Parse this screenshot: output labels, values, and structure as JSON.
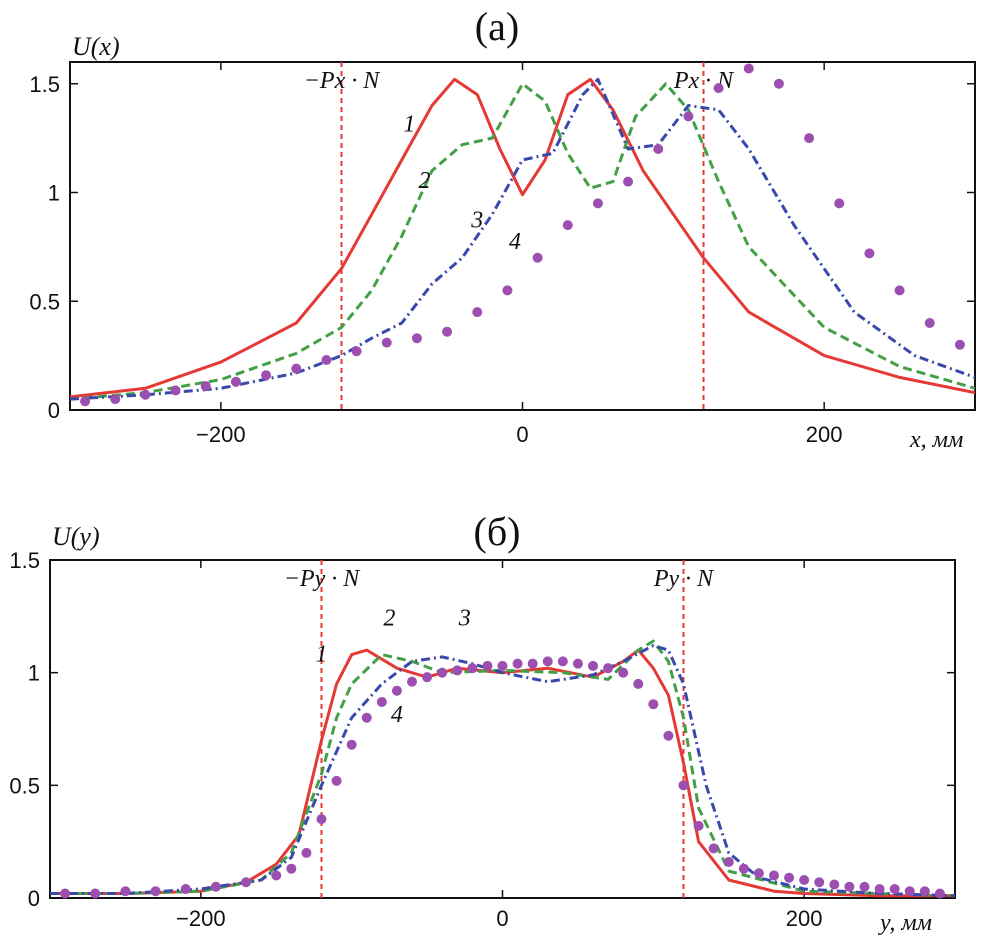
{
  "chart_data": [
    {
      "id": "a",
      "type": "line",
      "title": "(а)",
      "ylabel": "U(x)",
      "xlabel": "x, мм",
      "xlim": [
        -300,
        300
      ],
      "ylim": [
        0,
        1.6
      ],
      "xticks": [
        -200,
        0,
        200
      ],
      "xtick_labels": [
        "−200",
        "0",
        "200"
      ],
      "yticks": [
        0,
        0.5,
        1,
        1.5
      ],
      "ytick_labels": [
        "0",
        "0.5",
        "1",
        "1.5"
      ],
      "markers": [
        {
          "x": -120,
          "label": "−Px · N"
        },
        {
          "x": 120,
          "label": "Px · N"
        }
      ],
      "series": [
        {
          "name": "1",
          "style": "solid",
          "color": "#e53935",
          "x": [
            -300,
            -250,
            -200,
            -150,
            -120,
            -100,
            -80,
            -60,
            -45,
            -30,
            -15,
            0,
            15,
            30,
            45,
            60,
            80,
            100,
            120,
            150,
            200,
            250,
            300
          ],
          "y": [
            0.06,
            0.1,
            0.22,
            0.4,
            0.65,
            0.9,
            1.15,
            1.4,
            1.52,
            1.45,
            1.2,
            0.99,
            1.15,
            1.45,
            1.52,
            1.38,
            1.1,
            0.9,
            0.7,
            0.45,
            0.25,
            0.15,
            0.08
          ]
        },
        {
          "name": "2",
          "style": "dashed",
          "color": "#43a047",
          "x": [
            -300,
            -250,
            -200,
            -150,
            -120,
            -100,
            -80,
            -60,
            -40,
            -20,
            0,
            15,
            30,
            45,
            60,
            75,
            95,
            110,
            130,
            150,
            200,
            250,
            300
          ],
          "y": [
            0.05,
            0.08,
            0.14,
            0.26,
            0.38,
            0.55,
            0.8,
            1.1,
            1.22,
            1.25,
            1.5,
            1.42,
            1.18,
            1.02,
            1.05,
            1.35,
            1.5,
            1.38,
            1.05,
            0.75,
            0.38,
            0.2,
            0.1
          ]
        },
        {
          "name": "3",
          "style": "dashdot",
          "color": "#3949ab",
          "x": [
            -300,
            -250,
            -200,
            -150,
            -120,
            -100,
            -80,
            -60,
            -40,
            -20,
            0,
            20,
            40,
            50,
            70,
            90,
            110,
            130,
            150,
            180,
            220,
            260,
            300
          ],
          "y": [
            0.05,
            0.07,
            0.1,
            0.17,
            0.25,
            0.33,
            0.4,
            0.58,
            0.7,
            0.9,
            1.15,
            1.18,
            1.45,
            1.52,
            1.2,
            1.22,
            1.4,
            1.38,
            1.2,
            0.85,
            0.45,
            0.25,
            0.15
          ]
        },
        {
          "name": "4",
          "style": "dotted",
          "color": "#9c4fb0",
          "x": [
            -290,
            -270,
            -250,
            -230,
            -210,
            -190,
            -170,
            -150,
            -130,
            -110,
            -90,
            -70,
            -50,
            -30,
            -10,
            10,
            30,
            50,
            70,
            90,
            110,
            130,
            150,
            170,
            190,
            210,
            230,
            250,
            270,
            290
          ],
          "y": [
            0.04,
            0.05,
            0.07,
            0.09,
            0.11,
            0.13,
            0.16,
            0.19,
            0.23,
            0.27,
            0.31,
            0.33,
            0.36,
            0.45,
            0.55,
            0.7,
            0.85,
            0.95,
            1.05,
            1.2,
            1.35,
            1.48,
            1.57,
            1.5,
            1.25,
            0.95,
            0.72,
            0.55,
            0.4,
            0.3
          ]
        }
      ],
      "curve_labels": [
        {
          "text": "1",
          "x": -75,
          "y": 1.28
        },
        {
          "text": "2",
          "x": -65,
          "y": 1.02
        },
        {
          "text": "3",
          "x": -30,
          "y": 0.84
        },
        {
          "text": "4",
          "x": -5,
          "y": 0.74
        }
      ]
    },
    {
      "id": "b",
      "type": "line",
      "title": "(б)",
      "ylabel": "U(y)",
      "xlabel": "y, мм",
      "xlim": [
        -300,
        300
      ],
      "ylim": [
        0,
        1.5
      ],
      "xticks": [
        -200,
        0,
        200
      ],
      "xtick_labels": [
        "−200",
        "0",
        "200"
      ],
      "yticks": [
        0,
        0.5,
        1,
        1.5
      ],
      "ytick_labels": [
        "0",
        "0.5",
        "1",
        "1.5"
      ],
      "markers": [
        {
          "x": -120,
          "label": "−Py · N"
        },
        {
          "x": 120,
          "label": "Py · N"
        }
      ],
      "series": [
        {
          "name": "1",
          "style": "solid",
          "color": "#e53935",
          "x": [
            -300,
            -250,
            -200,
            -170,
            -150,
            -135,
            -120,
            -110,
            -100,
            -90,
            -70,
            -50,
            -30,
            0,
            30,
            60,
            80,
            90,
            100,
            110,
            120,
            130,
            150,
            180,
            200,
            250,
            300
          ],
          "y": [
            0.02,
            0.02,
            0.03,
            0.07,
            0.15,
            0.28,
            0.7,
            0.95,
            1.08,
            1.1,
            1.02,
            0.98,
            1.02,
            1.0,
            1.02,
            0.98,
            1.05,
            1.1,
            1.02,
            0.9,
            0.6,
            0.25,
            0.08,
            0.03,
            0.02,
            0.01,
            0.01
          ]
        },
        {
          "name": "2",
          "style": "dashed",
          "color": "#43a047",
          "x": [
            -300,
            -250,
            -200,
            -160,
            -140,
            -120,
            -110,
            -100,
            -80,
            -60,
            -40,
            0,
            40,
            70,
            90,
            100,
            110,
            120,
            130,
            150,
            200,
            250,
            300
          ],
          "y": [
            0.02,
            0.02,
            0.03,
            0.08,
            0.2,
            0.55,
            0.8,
            0.95,
            1.08,
            1.05,
            1.0,
            1.01,
            1.0,
            0.97,
            1.1,
            1.14,
            1.05,
            0.8,
            0.4,
            0.12,
            0.03,
            0.02,
            0.01
          ]
        },
        {
          "name": "3",
          "style": "dashdot",
          "color": "#3949ab",
          "x": [
            -300,
            -250,
            -200,
            -160,
            -140,
            -120,
            -100,
            -80,
            -60,
            -40,
            -20,
            0,
            30,
            60,
            80,
            100,
            110,
            120,
            135,
            150,
            170,
            200,
            250,
            300
          ],
          "y": [
            0.02,
            0.02,
            0.04,
            0.08,
            0.18,
            0.5,
            0.8,
            0.95,
            1.05,
            1.07,
            1.04,
            1.0,
            0.96,
            0.99,
            1.05,
            1.12,
            1.1,
            0.95,
            0.5,
            0.2,
            0.09,
            0.04,
            0.02,
            0.01
          ]
        },
        {
          "name": "4",
          "style": "dotted",
          "color": "#9c4fb0",
          "x": [
            -290,
            -270,
            -250,
            -230,
            -210,
            -190,
            -170,
            -150,
            -140,
            -130,
            -120,
            -110,
            -100,
            -90,
            -80,
            -70,
            -60,
            -50,
            -40,
            -30,
            -20,
            -10,
            0,
            10,
            20,
            30,
            40,
            50,
            60,
            70,
            80,
            90,
            100,
            110,
            120,
            130,
            140,
            150,
            160,
            170,
            180,
            190,
            200,
            210,
            220,
            230,
            240,
            250,
            260,
            270,
            280,
            290
          ],
          "y": [
            0.02,
            0.02,
            0.03,
            0.03,
            0.04,
            0.05,
            0.07,
            0.1,
            0.13,
            0.2,
            0.35,
            0.52,
            0.68,
            0.8,
            0.87,
            0.92,
            0.96,
            0.98,
            1.0,
            1.01,
            1.02,
            1.03,
            1.03,
            1.04,
            1.04,
            1.05,
            1.05,
            1.04,
            1.03,
            1.02,
            1.0,
            0.95,
            0.86,
            0.72,
            0.5,
            0.32,
            0.22,
            0.16,
            0.13,
            0.11,
            0.1,
            0.09,
            0.08,
            0.07,
            0.06,
            0.05,
            0.05,
            0.04,
            0.04,
            0.03,
            0.03,
            0.02
          ]
        }
      ],
      "curve_labels": [
        {
          "text": "1",
          "x": -120,
          "y": 1.05
        },
        {
          "text": "2",
          "x": -75,
          "y": 1.21
        },
        {
          "text": "3",
          "x": -25,
          "y": 1.21
        },
        {
          "text": "4",
          "x": -70,
          "y": 0.78
        }
      ]
    }
  ]
}
